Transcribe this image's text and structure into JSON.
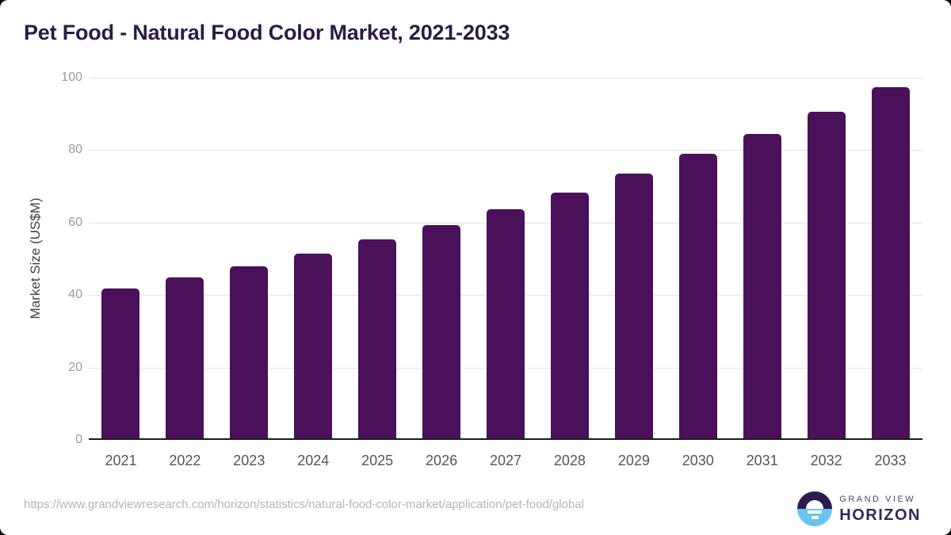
{
  "header": {
    "title": "Pet Food - Natural Food Color Market, 2021-2033",
    "title_color": "#2d1a45"
  },
  "chart_data": {
    "type": "bar",
    "title": "Pet Food - Natural Food Color Market, 2021-2033",
    "categories": [
      "2021",
      "2022",
      "2023",
      "2024",
      "2025",
      "2026",
      "2027",
      "2028",
      "2029",
      "2030",
      "2031",
      "2032",
      "2033"
    ],
    "values": [
      41.9,
      44.8,
      48.0,
      51.5,
      55.3,
      59.2,
      63.7,
      68.3,
      73.6,
      79.0,
      84.5,
      90.5,
      97.3
    ],
    "xlabel": "",
    "ylabel": "Market Size (US$M)",
    "ylim": [
      0,
      100
    ],
    "yticks": [
      0,
      20,
      40,
      60,
      80,
      100
    ],
    "legend": "none",
    "grid": "horizontal",
    "bar_color": "#4a1059",
    "gridline_color": "#e4e4e4",
    "axis_line_color": "#1c1c1c",
    "y_tick_label_color": "#9b9b9b",
    "x_tick_label_color": "#555555",
    "y_axis_title_color": "#3f3f3f"
  },
  "footer": {
    "source_url": "https://www.grandviewresearch.com/horizon/statistics/natural-food-color-market/application/pet-food/global",
    "source_url_color": "#b5b5b5",
    "logo": {
      "brand_top": "GRAND VIEW",
      "brand_bottom": "HORIZON",
      "brand_top_color": "#4a4462",
      "brand_bottom_color": "#372658",
      "icon_purple": "#2e1c4e",
      "icon_blue": "#67c5f0"
    }
  }
}
